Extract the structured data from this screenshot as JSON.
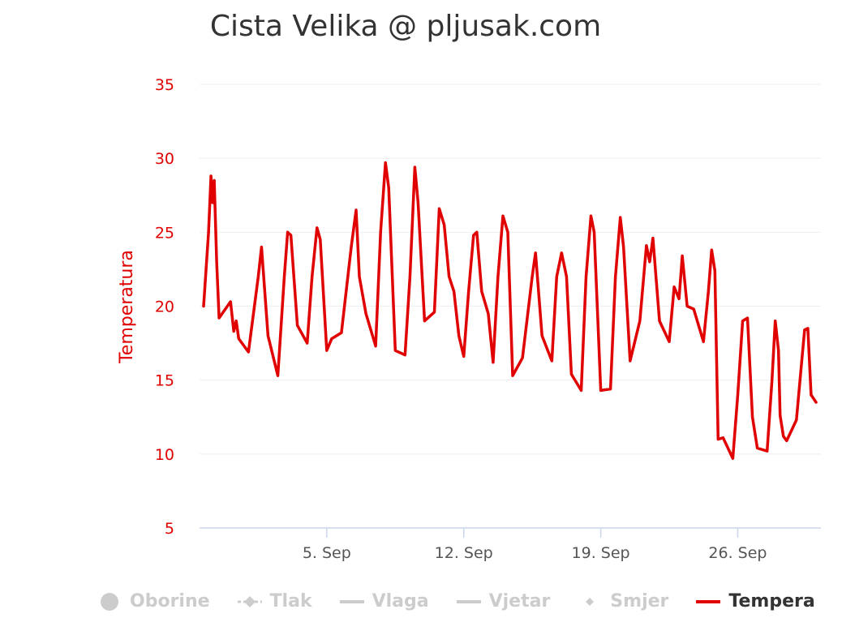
{
  "title": "Cista Velika @ pljusak.com",
  "legend": [
    {
      "label": "Oborine",
      "active": false,
      "icon": "circle-icon"
    },
    {
      "label": "Tlak",
      "active": false,
      "icon": "diamond-dash-icon"
    },
    {
      "label": "Vlaga",
      "active": false,
      "icon": "line-icon"
    },
    {
      "label": "Vjetar",
      "active": false,
      "icon": "line-icon"
    },
    {
      "label": "Smjer",
      "active": false,
      "icon": "diamond-icon"
    },
    {
      "label": "Tempera",
      "active": true,
      "icon": "red-line-icon"
    }
  ],
  "colors": {
    "series": "#e00000",
    "axis_text": "#e00000",
    "x_text": "#555555",
    "inactive": "#cccccc"
  },
  "chart_data": {
    "type": "line",
    "title": "Cista Velika @ pljusak.com",
    "ylabel": "Temperatura",
    "xlabel": "",
    "ylim": [
      5,
      35
    ],
    "yticks": [
      5,
      10,
      15,
      20,
      25,
      30,
      35
    ],
    "xlim": [
      "2023-08-29T12:00",
      "2023-09-30T06:00"
    ],
    "xticks": [
      {
        "date": "2023-09-05",
        "label": "5. Sep"
      },
      {
        "date": "2023-09-12",
        "label": "12. Sep"
      },
      {
        "date": "2023-09-19",
        "label": "19. Sep"
      },
      {
        "date": "2023-09-26",
        "label": "26. Sep"
      }
    ],
    "grid": true,
    "series": [
      {
        "name": "Tempera",
        "color": "#e00000",
        "points": [
          [
            "2023-08-29T17:00",
            20.0
          ],
          [
            "2023-08-29T23:00",
            25.0
          ],
          [
            "2023-08-30T02:00",
            28.8
          ],
          [
            "2023-08-30T04:00",
            27.0
          ],
          [
            "2023-08-30T06:00",
            28.5
          ],
          [
            "2023-08-30T09:00",
            23.0
          ],
          [
            "2023-08-30T12:00",
            19.2
          ],
          [
            "2023-08-31T02:00",
            20.3
          ],
          [
            "2023-08-31T06:00",
            18.3
          ],
          [
            "2023-08-31T09:00",
            19.0
          ],
          [
            "2023-08-31T12:00",
            17.8
          ],
          [
            "2023-09-01T00:00",
            16.9
          ],
          [
            "2023-09-01T12:00",
            22.0
          ],
          [
            "2023-09-01T16:00",
            24.0
          ],
          [
            "2023-09-02T00:00",
            18.0
          ],
          [
            "2023-09-02T12:00",
            15.3
          ],
          [
            "2023-09-02T20:00",
            22.0
          ],
          [
            "2023-09-03T00:00",
            25.0
          ],
          [
            "2023-09-03T04:00",
            24.8
          ],
          [
            "2023-09-03T12:00",
            18.7
          ],
          [
            "2023-09-04T00:00",
            17.5
          ],
          [
            "2023-09-04T06:00",
            22.0
          ],
          [
            "2023-09-04T12:00",
            25.3
          ],
          [
            "2023-09-04T16:00",
            24.5
          ],
          [
            "2023-09-05T00:00",
            17.0
          ],
          [
            "2023-09-05T06:00",
            17.8
          ],
          [
            "2023-09-05T18:00",
            18.2
          ],
          [
            "2023-09-06T06:00",
            24.0
          ],
          [
            "2023-09-06T12:00",
            26.5
          ],
          [
            "2023-09-06T16:00",
            22.0
          ],
          [
            "2023-09-07T00:00",
            19.5
          ],
          [
            "2023-09-07T12:00",
            17.3
          ],
          [
            "2023-09-07T18:00",
            25.0
          ],
          [
            "2023-09-08T00:00",
            29.7
          ],
          [
            "2023-09-08T04:00",
            28.0
          ],
          [
            "2023-09-08T12:00",
            17.0
          ],
          [
            "2023-09-09T00:00",
            16.7
          ],
          [
            "2023-09-09T06:00",
            22.0
          ],
          [
            "2023-09-09T12:00",
            29.4
          ],
          [
            "2023-09-09T16:00",
            27.0
          ],
          [
            "2023-09-10T00:00",
            19.0
          ],
          [
            "2023-09-10T12:00",
            19.6
          ],
          [
            "2023-09-10T18:00",
            26.6
          ],
          [
            "2023-09-11T00:00",
            25.5
          ],
          [
            "2023-09-11T06:00",
            22.0
          ],
          [
            "2023-09-11T12:00",
            21.0
          ],
          [
            "2023-09-11T18:00",
            18.0
          ],
          [
            "2023-09-12T00:00",
            16.6
          ],
          [
            "2023-09-12T06:00",
            21.0
          ],
          [
            "2023-09-12T12:00",
            24.8
          ],
          [
            "2023-09-12T16:00",
            25.0
          ],
          [
            "2023-09-12T22:00",
            21.0
          ],
          [
            "2023-09-13T06:00",
            19.5
          ],
          [
            "2023-09-13T12:00",
            16.2
          ],
          [
            "2023-09-13T18:00",
            22.0
          ],
          [
            "2023-09-14T00:00",
            26.1
          ],
          [
            "2023-09-14T06:00",
            25.0
          ],
          [
            "2023-09-14T12:00",
            15.3
          ],
          [
            "2023-09-15T00:00",
            16.5
          ],
          [
            "2023-09-15T12:00",
            22.0
          ],
          [
            "2023-09-15T16:00",
            23.6
          ],
          [
            "2023-09-16T00:00",
            18.0
          ],
          [
            "2023-09-16T12:00",
            16.3
          ],
          [
            "2023-09-16T18:00",
            22.0
          ],
          [
            "2023-09-17T00:00",
            23.6
          ],
          [
            "2023-09-17T06:00",
            22.0
          ],
          [
            "2023-09-17T12:00",
            15.4
          ],
          [
            "2023-09-18T00:00",
            14.3
          ],
          [
            "2023-09-18T06:00",
            22.0
          ],
          [
            "2023-09-18T12:00",
            26.1
          ],
          [
            "2023-09-18T16:00",
            25.0
          ],
          [
            "2023-09-19T00:00",
            14.3
          ],
          [
            "2023-09-19T12:00",
            14.4
          ],
          [
            "2023-09-19T18:00",
            22.0
          ],
          [
            "2023-09-20T00:00",
            26.0
          ],
          [
            "2023-09-20T04:00",
            24.0
          ],
          [
            "2023-09-20T12:00",
            16.3
          ],
          [
            "2023-09-21T00:00",
            19.0
          ],
          [
            "2023-09-21T08:00",
            24.1
          ],
          [
            "2023-09-21T12:00",
            23.0
          ],
          [
            "2023-09-21T16:00",
            24.6
          ],
          [
            "2023-09-22T00:00",
            19.0
          ],
          [
            "2023-09-22T12:00",
            17.6
          ],
          [
            "2023-09-22T18:00",
            21.3
          ],
          [
            "2023-09-23T00:00",
            20.5
          ],
          [
            "2023-09-23T04:00",
            23.4
          ],
          [
            "2023-09-23T10:00",
            20.0
          ],
          [
            "2023-09-23T18:00",
            19.8
          ],
          [
            "2023-09-24T06:00",
            17.6
          ],
          [
            "2023-09-24T12:00",
            21.0
          ],
          [
            "2023-09-24T16:00",
            23.8
          ],
          [
            "2023-09-24T20:00",
            22.4
          ],
          [
            "2023-09-25T00:00",
            11.0
          ],
          [
            "2023-09-25T06:00",
            11.1
          ],
          [
            "2023-09-25T18:00",
            9.7
          ],
          [
            "2023-09-26T00:00",
            14.0
          ],
          [
            "2023-09-26T06:00",
            19.0
          ],
          [
            "2023-09-26T12:00",
            19.2
          ],
          [
            "2023-09-26T18:00",
            12.5
          ],
          [
            "2023-09-27T00:00",
            10.4
          ],
          [
            "2023-09-27T12:00",
            10.2
          ],
          [
            "2023-09-27T18:00",
            15.0
          ],
          [
            "2023-09-27T22:00",
            19.0
          ],
          [
            "2023-09-28T02:00",
            17.0
          ],
          [
            "2023-09-28T04:00",
            12.6
          ],
          [
            "2023-09-28T08:00",
            11.2
          ],
          [
            "2023-09-28T12:00",
            10.9
          ],
          [
            "2023-09-29T00:00",
            12.3
          ],
          [
            "2023-09-29T06:00",
            16.0
          ],
          [
            "2023-09-29T10:00",
            18.4
          ],
          [
            "2023-09-29T14:00",
            18.5
          ],
          [
            "2023-09-29T18:00",
            14.0
          ],
          [
            "2023-09-30T00:00",
            13.5
          ]
        ]
      }
    ]
  }
}
